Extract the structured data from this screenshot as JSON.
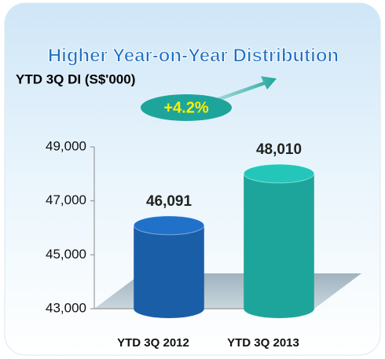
{
  "chart_data": {
    "type": "bar",
    "title": "Higher Year-on-Year Distribution",
    "subtitle": "YTD 3Q DI (S$'000)",
    "annotation": "+4.2%",
    "categories": [
      "YTD 3Q 2012",
      "YTD 3Q 2013"
    ],
    "values": [
      46091,
      48010
    ],
    "value_labels": [
      "46,091",
      "48,010"
    ],
    "colors": [
      "#1b5ea8",
      "#1ea59b"
    ],
    "ylim": [
      43000,
      49000
    ],
    "yticks": [
      {
        "value": 43000,
        "label": "43,000"
      },
      {
        "value": 45000,
        "label": "45,000"
      },
      {
        "value": 47000,
        "label": "47,000"
      },
      {
        "value": 49000,
        "label": "49,000"
      }
    ],
    "grid": false
  }
}
